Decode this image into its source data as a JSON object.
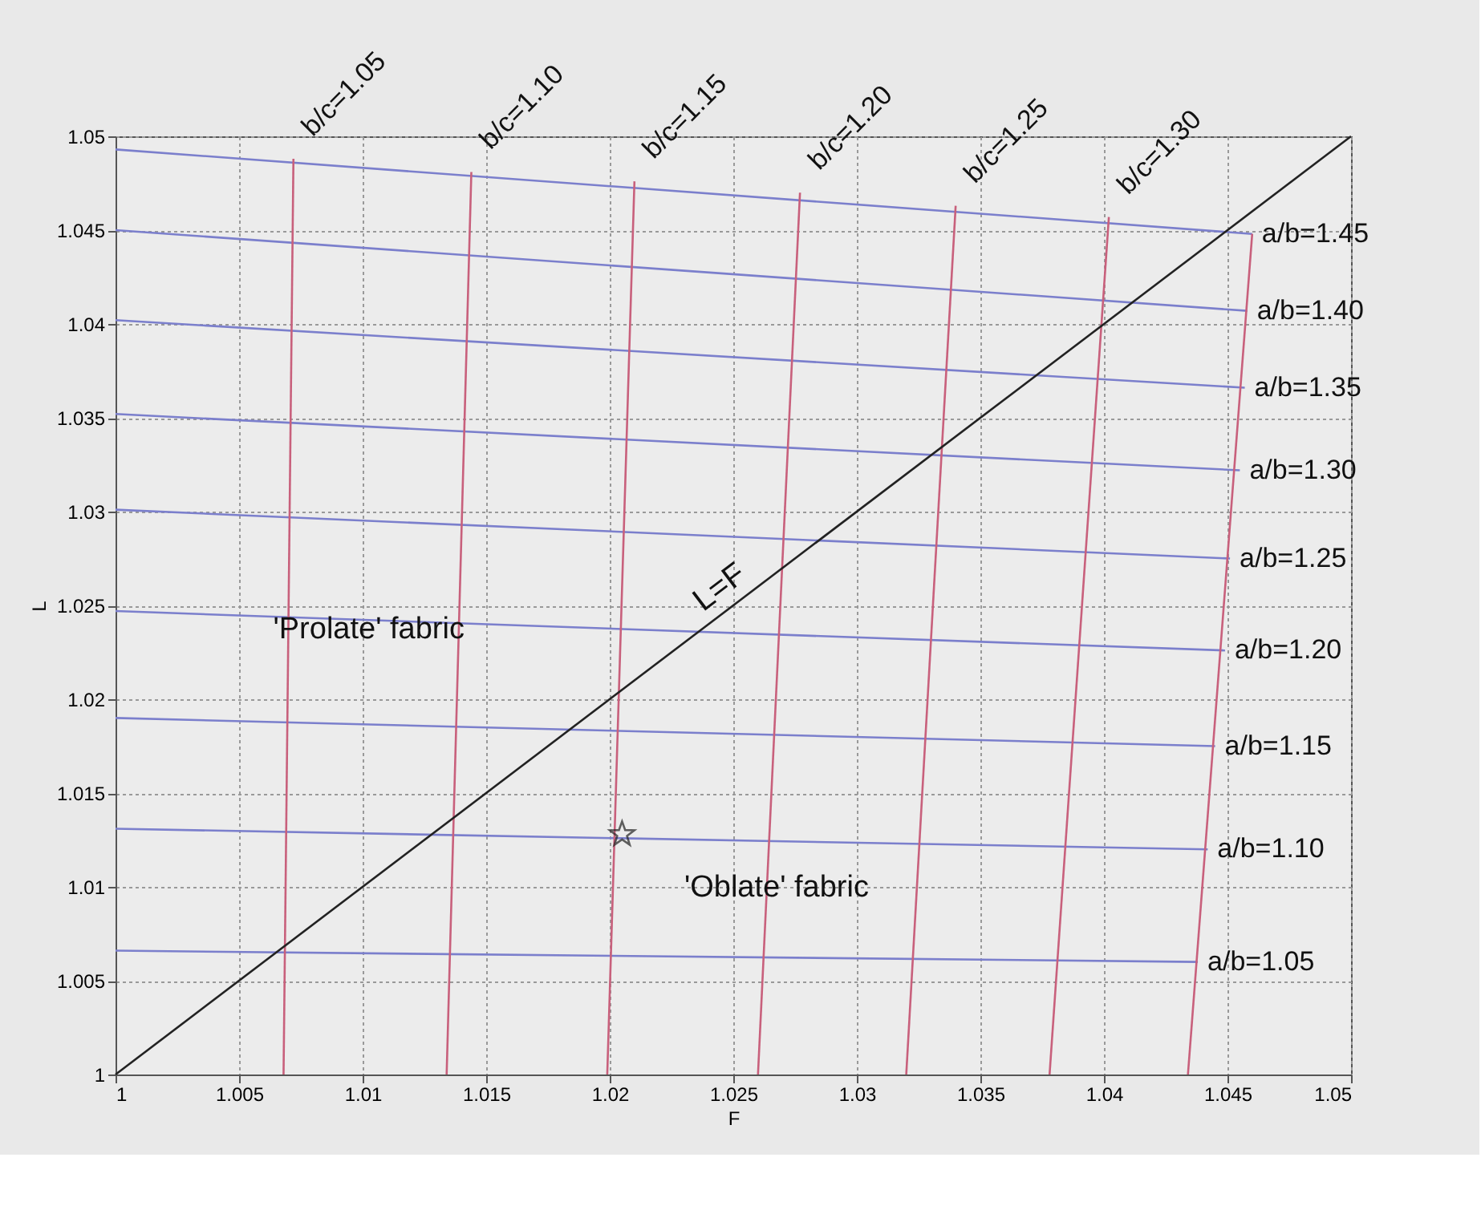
{
  "chart_data": {
    "type": "line",
    "xlabel": "F",
    "ylabel": "L",
    "xlim": [
      1,
      1.05
    ],
    "ylim": [
      1,
      1.05
    ],
    "xticks": [
      1,
      1.005,
      1.01,
      1.015,
      1.02,
      1.025,
      1.03,
      1.035,
      1.04,
      1.045,
      1.05
    ],
    "yticks": [
      1,
      1.005,
      1.01,
      1.015,
      1.02,
      1.025,
      1.03,
      1.035,
      1.04,
      1.045,
      1.05
    ],
    "grid": true,
    "line_style": "solid",
    "series": [
      {
        "name": "a/b=1.45",
        "color": "#7b7fcc",
        "x": [
          1,
          1.046
        ],
        "values": [
          1.0493,
          1.0448
        ]
      },
      {
        "name": "a/b=1.40",
        "color": "#7b7fcc",
        "x": [
          1,
          1.0458
        ],
        "values": [
          1.045,
          1.0407
        ]
      },
      {
        "name": "a/b=1.35",
        "color": "#7b7fcc",
        "x": [
          1,
          1.0457
        ],
        "values": [
          1.0402,
          1.0366
        ]
      },
      {
        "name": "a/b=1.30",
        "color": "#7b7fcc",
        "x": [
          1,
          1.0455
        ],
        "values": [
          1.0352,
          1.0322
        ]
      },
      {
        "name": "a/b=1.25",
        "color": "#7b7fcc",
        "x": [
          1,
          1.0451
        ],
        "values": [
          1.0301,
          1.0275
        ]
      },
      {
        "name": "a/b=1.20",
        "color": "#7b7fcc",
        "x": [
          1,
          1.0449
        ],
        "values": [
          1.0247,
          1.0226
        ]
      },
      {
        "name": "a/b=1.15",
        "color": "#7b7fcc",
        "x": [
          1,
          1.0445
        ],
        "values": [
          1.019,
          1.0175
        ]
      },
      {
        "name": "a/b=1.10",
        "color": "#7b7fcc",
        "x": [
          1,
          1.0442
        ],
        "values": [
          1.0131,
          1.012
        ]
      },
      {
        "name": "a/b=1.05",
        "color": "#7b7fcc",
        "x": [
          1,
          1.0438
        ],
        "values": [
          1.0066,
          1.006
        ]
      },
      {
        "name": "b/c=1.05",
        "color": "#c8607c",
        "x": [
          1.0068,
          1.0072
        ],
        "values": [
          1,
          1.0488
        ]
      },
      {
        "name": "b/c=1.10",
        "color": "#c8607c",
        "x": [
          1.0134,
          1.0144
        ],
        "values": [
          1,
          1.0481
        ]
      },
      {
        "name": "b/c=1.15",
        "color": "#c8607c",
        "x": [
          1.0199,
          1.021
        ],
        "values": [
          1,
          1.0476
        ]
      },
      {
        "name": "b/c=1.20",
        "color": "#c8607c",
        "x": [
          1.026,
          1.0277
        ],
        "values": [
          1,
          1.047
        ]
      },
      {
        "name": "b/c=1.25",
        "color": "#c8607c",
        "x": [
          1.032,
          1.034
        ],
        "values": [
          1,
          1.0463
        ]
      },
      {
        "name": "b/c=1.30",
        "color": "#c8607c",
        "x": [
          1.0378,
          1.0402
        ],
        "values": [
          1,
          1.0457
        ]
      },
      {
        "color": "#c8607c",
        "x": [
          1.0434,
          1.046
        ],
        "values": [
          1,
          1.0448
        ]
      },
      {
        "name": "L=F",
        "color": "#222222",
        "x": [
          1,
          1.05
        ],
        "values": [
          1,
          1.05
        ]
      },
      {
        "type": "scatter",
        "marker": "star",
        "color": "#222222",
        "x": [
          1.0205
        ],
        "values": [
          1.0128
        ]
      }
    ],
    "annotations": [
      "'Prolate' fabric",
      "'Oblate' fabric"
    ]
  }
}
